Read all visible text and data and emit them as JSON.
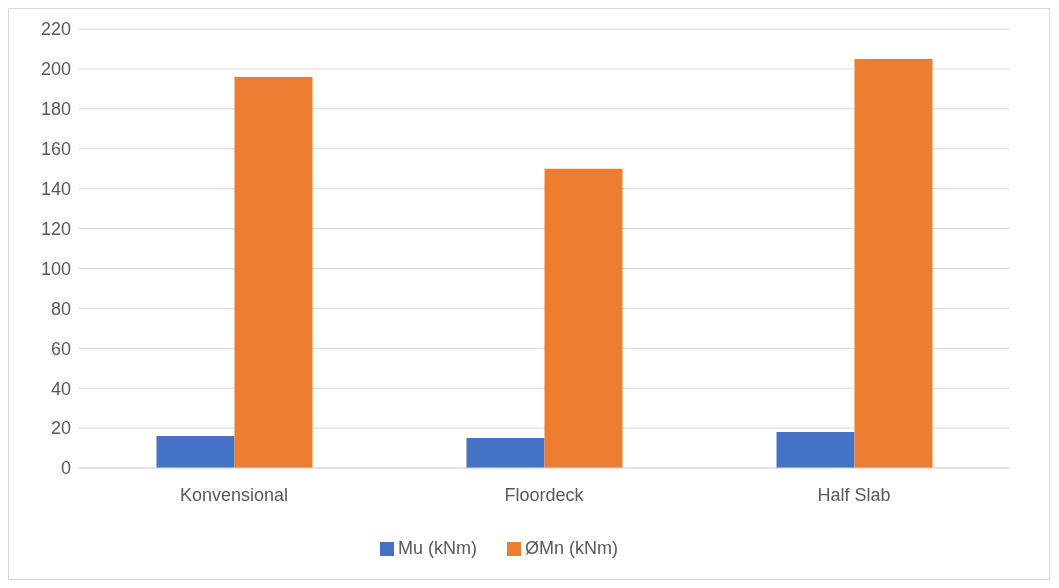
{
  "chart_data": {
    "type": "bar",
    "categories": [
      "Konvensional",
      "Floordeck",
      "Half Slab"
    ],
    "series": [
      {
        "name": "Mu (kNm)",
        "color": "#4472c4",
        "values": [
          16,
          15,
          18
        ]
      },
      {
        "name": "ØMn (kNm)",
        "color": "#ed7d31",
        "values": [
          196,
          150,
          205
        ]
      }
    ],
    "ylim": [
      0,
      220
    ],
    "yticks": [
      0,
      20,
      40,
      60,
      80,
      100,
      120,
      140,
      160,
      180,
      200,
      220
    ],
    "grid": "y",
    "legend": "bottom"
  }
}
